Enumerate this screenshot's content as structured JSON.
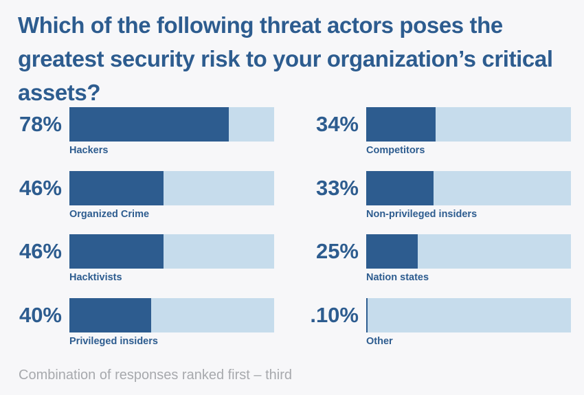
{
  "header": {
    "title": "Which of the following threat actors poses the greatest security risk to your organization’s critical assets?"
  },
  "footer": {
    "note": "Combination of responses ranked first – third"
  },
  "colors": {
    "bar_fill": "#2d5c8f",
    "bar_track": "#c6dcec",
    "text": "#2d5c8f",
    "note": "#a7a9ad",
    "background": "#f7f7f9"
  },
  "chart_data": {
    "type": "bar",
    "orientation": "horizontal",
    "xlim": [
      0,
      100
    ],
    "unit": "%",
    "columns": 2,
    "items": [
      {
        "category": "Hackers",
        "value": 78,
        "display": "78%"
      },
      {
        "category": "Organized Crime",
        "value": 46,
        "display": "46%"
      },
      {
        "category": "Hacktivists",
        "value": 46,
        "display": "46%"
      },
      {
        "category": "Privileged insiders",
        "value": 40,
        "display": "40%"
      },
      {
        "category": "Competitors",
        "value": 34,
        "display": "34%"
      },
      {
        "category": "Non-privileged insiders",
        "value": 33,
        "display": "33%"
      },
      {
        "category": "Nation states",
        "value": 25,
        "display": "25%"
      },
      {
        "category": "Other",
        "value": 0.1,
        "display": ".10%"
      }
    ]
  }
}
